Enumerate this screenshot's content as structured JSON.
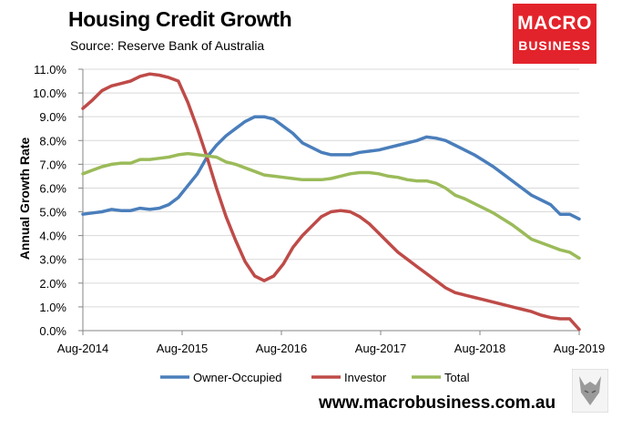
{
  "header": {
    "title": "Housing Credit Growth",
    "subtitle": "Source: Reserve Bank of Australia"
  },
  "logo": {
    "line1": "MACRO",
    "line2": "BUSINESS"
  },
  "footer": {
    "url": "www.macrobusiness.com.au"
  },
  "chart_data": {
    "type": "line",
    "title": "Housing Credit Growth",
    "xlabel": "",
    "ylabel": "Annual Growth Rate",
    "ylim": [
      0,
      11
    ],
    "yticks": [
      "0.0%",
      "1.0%",
      "2.0%",
      "3.0%",
      "4.0%",
      "5.0%",
      "6.0%",
      "7.0%",
      "8.0%",
      "9.0%",
      "10.0%",
      "11.0%"
    ],
    "xticks": [
      "Aug-2014",
      "Aug-2015",
      "Aug-2016",
      "Aug-2017",
      "Aug-2018",
      "Aug-2019"
    ],
    "legend_position": "bottom",
    "series": [
      {
        "name": "Owner-Occupied",
        "color": "#4a7ebb",
        "values": [
          4.9,
          4.95,
          5.0,
          5.1,
          5.05,
          5.05,
          5.15,
          5.1,
          5.15,
          5.3,
          5.6,
          6.1,
          6.6,
          7.3,
          7.8,
          8.2,
          8.5,
          8.8,
          9.0,
          9.0,
          8.9,
          8.6,
          8.3,
          7.9,
          7.7,
          7.5,
          7.4,
          7.4,
          7.4,
          7.5,
          7.55,
          7.6,
          7.7,
          7.8,
          7.9,
          8.0,
          8.15,
          8.1,
          8.0,
          7.8,
          7.6,
          7.4,
          7.15,
          6.9,
          6.6,
          6.3,
          6.0,
          5.7,
          5.5,
          5.3,
          4.9,
          4.9,
          4.7
        ]
      },
      {
        "name": "Investor",
        "color": "#be4b48",
        "values": [
          9.35,
          9.7,
          10.1,
          10.3,
          10.4,
          10.5,
          10.7,
          10.8,
          10.75,
          10.65,
          10.5,
          9.6,
          8.5,
          7.3,
          6.0,
          4.8,
          3.8,
          2.9,
          2.3,
          2.1,
          2.3,
          2.8,
          3.5,
          4.0,
          4.4,
          4.8,
          5.0,
          5.05,
          5.0,
          4.8,
          4.5,
          4.1,
          3.7,
          3.3,
          3.0,
          2.7,
          2.4,
          2.1,
          1.8,
          1.6,
          1.5,
          1.4,
          1.3,
          1.2,
          1.1,
          1.0,
          0.9,
          0.8,
          0.65,
          0.55,
          0.5,
          0.5,
          0.05
        ]
      },
      {
        "name": "Total",
        "color": "#9bbb59",
        "values": [
          6.6,
          6.75,
          6.9,
          7.0,
          7.05,
          7.05,
          7.2,
          7.2,
          7.25,
          7.3,
          7.4,
          7.45,
          7.4,
          7.35,
          7.3,
          7.1,
          7.0,
          6.85,
          6.7,
          6.55,
          6.5,
          6.45,
          6.4,
          6.35,
          6.35,
          6.35,
          6.4,
          6.5,
          6.6,
          6.65,
          6.65,
          6.6,
          6.5,
          6.45,
          6.35,
          6.3,
          6.3,
          6.2,
          6.0,
          5.7,
          5.55,
          5.35,
          5.15,
          4.95,
          4.7,
          4.45,
          4.15,
          3.85,
          3.7,
          3.55,
          3.4,
          3.3,
          3.05
        ]
      }
    ]
  }
}
